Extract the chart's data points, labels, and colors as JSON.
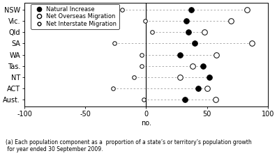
{
  "categories": [
    "NSW",
    "Vic.",
    "Qld",
    "SA",
    "WA",
    "Tas.",
    "NT",
    "ACT",
    "Aust."
  ],
  "natural_increase": [
    37,
    33,
    35,
    40,
    28,
    47,
    52,
    43,
    32
  ],
  "net_overseas_migration": [
    83,
    70,
    48,
    87,
    58,
    38,
    28,
    50,
    57
  ],
  "net_interstate_migration": [
    -20,
    -1,
    5,
    -26,
    -4,
    -4,
    -10,
    -27,
    -2
  ],
  "xlim": [
    -100,
    100
  ],
  "xticks": [
    -100,
    -50,
    0,
    50,
    100
  ],
  "xlabel": "no.",
  "footnote": "(a) Each population component as a  proportion of a state’s or territory’s population growth\n for year ended 30 September 2009.",
  "legend_labels": [
    "Natural Increase",
    "Net Overseas Migration",
    "Net Interstate Migration"
  ],
  "line_color": "#aaaaaa",
  "background_color": "#ffffff"
}
